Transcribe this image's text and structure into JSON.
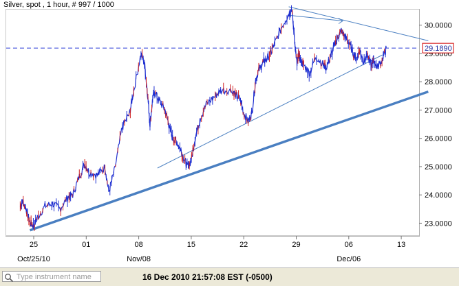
{
  "chart_data": {
    "type": "line",
    "title": "Silver, spot , 1 hour, # 997 / 1000",
    "x_ticks": [
      "25",
      "01",
      "08",
      "15",
      "22",
      "29",
      "06",
      "13"
    ],
    "x_sublabels": [
      "Oct/25/10",
      "Nov/08",
      "Dec/06"
    ],
    "y_ticks": [
      "23.0000",
      "24.0000",
      "25.0000",
      "26.0000",
      "27.0000",
      "28.0000",
      "29.0000",
      "30.0000"
    ],
    "ylim": [
      22.55,
      30.55
    ],
    "current_price_label": "29.1890",
    "current_price": 29.189,
    "series": [
      {
        "x_days": [
          -1.8,
          -1.5,
          -1.0,
          -0.5,
          0.0,
          0.5,
          1.5,
          2.5,
          3.5,
          4.5,
          5.2,
          6.0,
          6.8,
          7.4,
          8.5,
          9.5,
          10.0,
          10.8,
          11.8,
          12.8,
          13.2,
          14.3,
          14.8,
          15.2,
          15.5,
          15.9,
          16.2,
          16.8,
          17.5,
          18.0,
          18.5,
          19.0,
          19.6,
          20.0,
          20.5,
          21.0,
          21.5,
          22.2,
          23.0,
          24.2,
          25.0,
          26.5,
          27.0,
          27.5,
          28.0,
          28.6,
          29.1,
          29.6,
          30.0,
          30.6,
          31.0,
          31.6,
          32.2,
          33.2,
          34.0,
          34.4,
          34.8,
          35.1,
          35.3,
          35.6,
          36.0,
          36.8,
          37.6,
          38.6,
          39.0,
          39.6,
          40.1,
          40.6,
          41.0,
          41.5,
          42.0,
          42.6,
          43.0,
          43.5,
          44.0,
          44.5,
          45.0,
          45.3,
          45.8,
          46.5,
          47.0
        ],
        "values": [
          23.6,
          23.8,
          23.5,
          23.0,
          22.9,
          23.2,
          23.6,
          23.7,
          23.5,
          23.9,
          24.0,
          24.6,
          25.1,
          24.8,
          24.7,
          25.0,
          24.1,
          24.9,
          26.4,
          26.9,
          27.5,
          29.0,
          28.6,
          27.5,
          26.5,
          27.5,
          27.6,
          27.3,
          27.0,
          26.5,
          26.0,
          25.9,
          25.6,
          25.3,
          25.0,
          25.2,
          26.0,
          26.7,
          27.2,
          27.5,
          27.7,
          27.7,
          27.5,
          27.4,
          26.9,
          26.6,
          26.9,
          28.1,
          28.4,
          28.7,
          28.8,
          29.0,
          29.4,
          30.0,
          30.4,
          30.6,
          29.4,
          28.6,
          29.0,
          28.7,
          28.6,
          28.3,
          28.9,
          28.6,
          28.5,
          28.9,
          29.3,
          29.6,
          29.8,
          29.6,
          29.4,
          29.0,
          28.8,
          29.1,
          28.7,
          28.9,
          28.6,
          28.8,
          28.5,
          28.8,
          29.19
        ]
      }
    ],
    "colors": {
      "series": "#1f2fd0",
      "wick_accent": "#d02020",
      "trendline": "#4a7fc1",
      "price_line": "#2f3fd8",
      "price_label_border": "#d00000",
      "price_label_text": "#1f2fa0"
    },
    "grid": false
  },
  "search": {
    "placeholder": "Type instrument name"
  },
  "status": {
    "timestamp": "16 Dec 2010 21:57:08  EST (-0500)"
  }
}
